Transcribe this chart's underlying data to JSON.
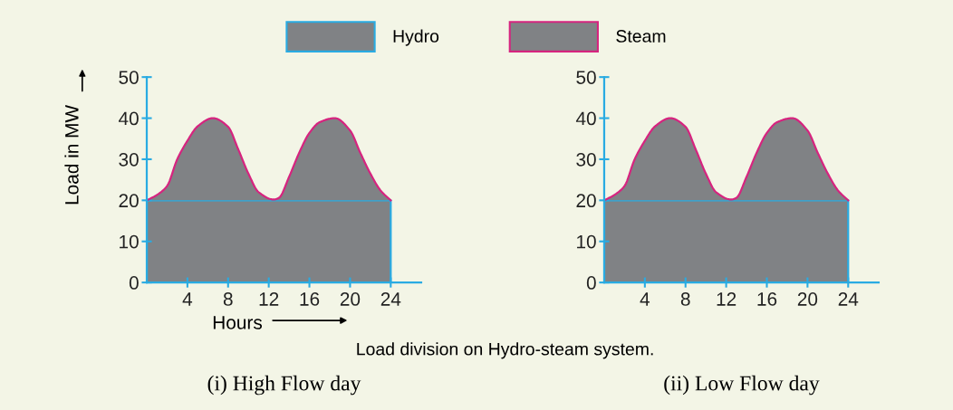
{
  "chart_data": [
    {
      "type": "area",
      "stacked": true,
      "title": "(i) High Flow day",
      "xlabel": "Hours",
      "ylabel": "Load in MW",
      "annotations": [
        "Load division on Hydro-steam system."
      ],
      "legend": "top",
      "x": [
        0,
        1,
        2,
        3,
        4,
        5,
        6.5,
        8,
        9,
        10,
        11,
        12.5,
        13,
        14,
        15,
        16,
        17,
        18.5,
        20,
        21,
        22,
        23,
        24
      ],
      "series": [
        {
          "name": "Hydro",
          "color": "#808285",
          "values": [
            20,
            20,
            20,
            20,
            20,
            20,
            20,
            20,
            20,
            20,
            20,
            20,
            20,
            20,
            20,
            20,
            20,
            20,
            20,
            20,
            20,
            20,
            20
          ]
        },
        {
          "name": "Steam",
          "color": "#808285",
          "values": [
            0,
            1.3,
            3.5,
            10,
            14.5,
            18,
            20,
            17.9,
            12.4,
            6.5,
            2,
            0.2,
            0.6,
            5.7,
            11.6,
            16.4,
            19,
            20,
            17,
            11.6,
            6.5,
            2.4,
            0
          ]
        }
      ],
      "xlim": [
        0,
        27
      ],
      "ylim": [
        0,
        50
      ],
      "xticks": [
        4,
        8,
        12,
        16,
        20,
        24
      ],
      "yticks": [
        0,
        10,
        20,
        30,
        40,
        50
      ],
      "grid": false
    },
    {
      "type": "area",
      "stacked": true,
      "title": "(ii) Low Flow day",
      "legend": false,
      "x": [
        0,
        1,
        2,
        3,
        4,
        5,
        6.5,
        8,
        9,
        10,
        11,
        12.5,
        13,
        14,
        15,
        16,
        17,
        18.5,
        20,
        21,
        22,
        23,
        24
      ],
      "series": [
        {
          "color": "#808285",
          "values": [
            20,
            20,
            20,
            20,
            20,
            20,
            20,
            20,
            20,
            20,
            20,
            20,
            20,
            20,
            20,
            20,
            20,
            20,
            20,
            20,
            20,
            20,
            20
          ]
        },
        {
          "color": "#808285",
          "values": [
            0,
            1.3,
            3.5,
            10,
            14.5,
            18,
            20,
            17.9,
            12.4,
            6.5,
            2,
            0.2,
            0.6,
            5.7,
            11.6,
            16.4,
            19,
            20,
            17,
            11.6,
            6.5,
            2.4,
            0
          ]
        }
      ],
      "xlim": [
        0,
        27
      ],
      "ylim": [
        0,
        50
      ],
      "xticks": [
        4,
        8,
        12,
        16,
        20,
        24
      ],
      "yticks": [
        0,
        10,
        20,
        30,
        40,
        50
      ],
      "grid": false
    }
  ]
}
